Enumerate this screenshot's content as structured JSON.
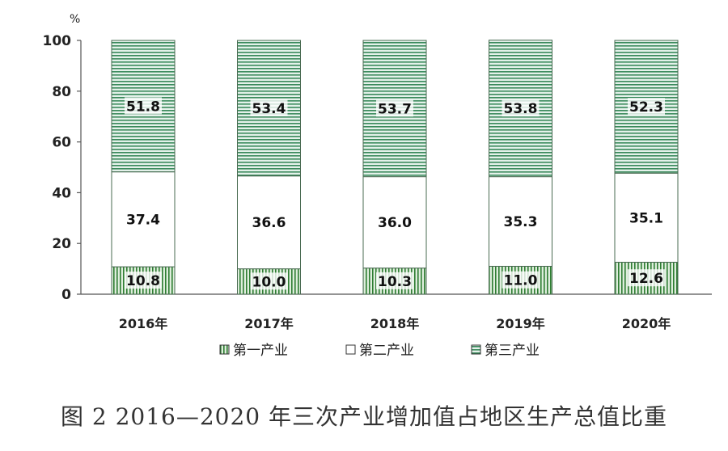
{
  "caption": "图 2  2016—2020 年三次产业增加值占地区生产总值比重",
  "chart_data": {
    "type": "bar",
    "stacked": true,
    "unit": "%",
    "ylim": [
      0,
      100
    ],
    "yticks": [
      0,
      20,
      40,
      60,
      80,
      100
    ],
    "grid": false,
    "legend_position": "bottom",
    "categories": [
      "2016年",
      "2017年",
      "2018年",
      "2019年",
      "2020年"
    ],
    "series": [
      {
        "name": "第一产业",
        "values": [
          10.8,
          10.0,
          10.3,
          11.0,
          12.6
        ],
        "labels": [
          "10.8",
          "10.0",
          "10.3",
          "11.0",
          "12.6"
        ],
        "color": "#2e7d32"
      },
      {
        "name": "第二产业",
        "values": [
          37.4,
          36.6,
          36.0,
          35.3,
          35.1
        ],
        "labels": [
          "37.4",
          "36.6",
          "36.0",
          "35.3",
          "35.1"
        ],
        "color": "#ffffff"
      },
      {
        "name": "第三产业",
        "values": [
          51.8,
          53.4,
          53.7,
          53.8,
          52.3
        ],
        "labels": [
          "51.8",
          "53.4",
          "53.7",
          "53.8",
          "52.3"
        ],
        "color": "#3a8a5c"
      }
    ]
  }
}
